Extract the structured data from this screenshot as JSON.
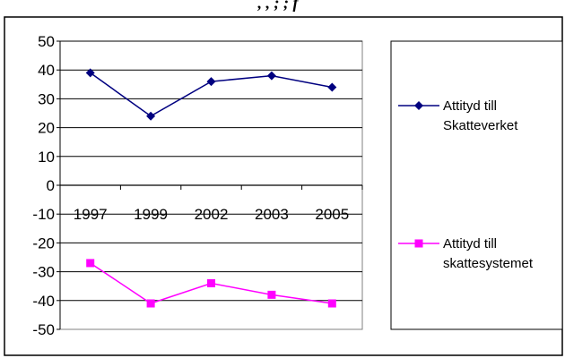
{
  "chart_data": {
    "type": "line",
    "title_fragment": ", , ; ; f",
    "categories": [
      "1997",
      "1999",
      "2002",
      "2003",
      "2005"
    ],
    "ylim": [
      -50,
      50
    ],
    "yticks": [
      50,
      40,
      30,
      20,
      10,
      0,
      -10,
      -20,
      -30,
      -40,
      -50
    ],
    "ytick_labels": [
      "50",
      "40",
      "30",
      "20",
      "10",
      "0",
      "-10",
      "-20",
      "-30",
      "-40",
      "-50"
    ],
    "grid": true,
    "legend_position": "right",
    "series": [
      {
        "name_lines": [
          "Attityd till",
          "Skatteverket"
        ],
        "values": [
          39,
          24,
          36,
          38,
          34
        ],
        "color": "#000080",
        "marker": "diamond"
      },
      {
        "name_lines": [
          "Attityd till",
          "skattesystemet"
        ],
        "values": [
          -27,
          -41,
          -34,
          -38,
          -41
        ],
        "color": "#ff00ff",
        "marker": "square"
      }
    ]
  }
}
